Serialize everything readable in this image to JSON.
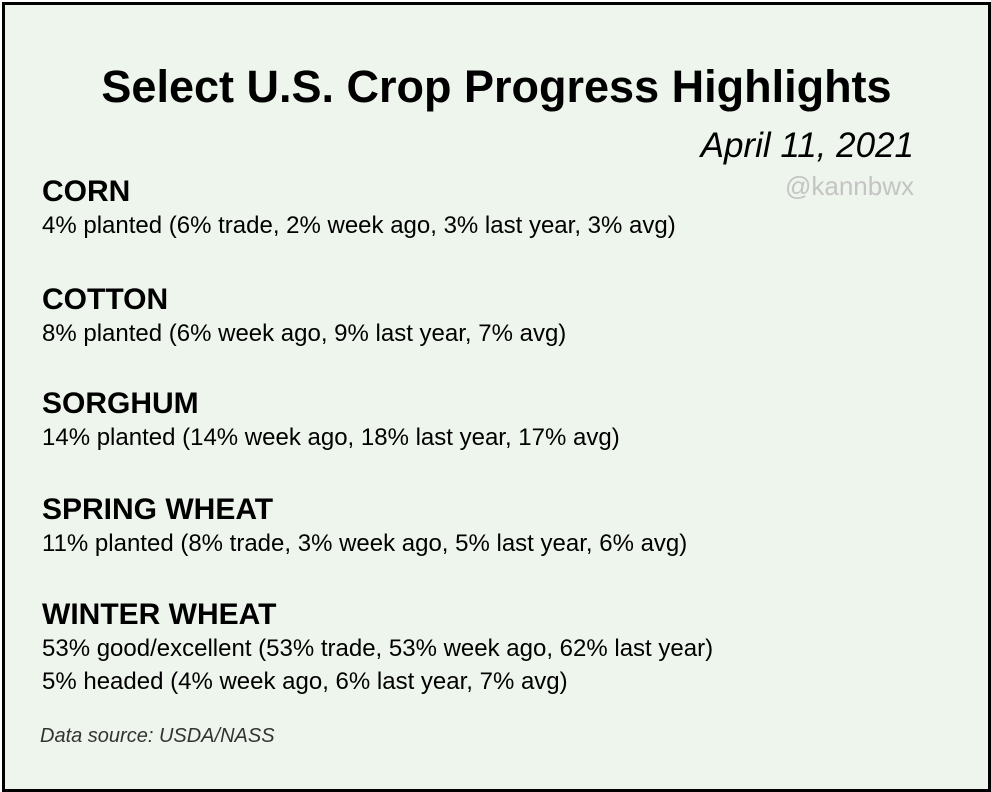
{
  "header": {
    "title": "Select U.S. Crop Progress Highlights",
    "date": "April 11, 2021",
    "handle": "@kannbwx"
  },
  "sections": [
    {
      "name": "CORN",
      "lines": [
        "4% planted (6% trade, 2% week ago, 3% last year, 3% avg)"
      ]
    },
    {
      "name": "COTTON",
      "lines": [
        "8% planted (6% week ago, 9% last year, 7% avg)"
      ]
    },
    {
      "name": "SORGHUM",
      "lines": [
        "14% planted (14% week ago, 18% last year, 17% avg)"
      ]
    },
    {
      "name": "SPRING WHEAT",
      "lines": [
        "11% planted (8% trade, 3% week ago, 5% last year, 6% avg)"
      ]
    },
    {
      "name": "WINTER WHEAT",
      "lines": [
        "53% good/excellent (53% trade, 53% week ago, 62% last year)",
        "5% headed (4% week ago, 6% last year, 7% avg)"
      ]
    }
  ],
  "footer": {
    "source": "Data source: USDA/NASS"
  },
  "colors": {
    "background": "#eef5ec",
    "border": "#000000",
    "text": "#000000",
    "handle": "#c4c4c4",
    "source": "#333333"
  }
}
